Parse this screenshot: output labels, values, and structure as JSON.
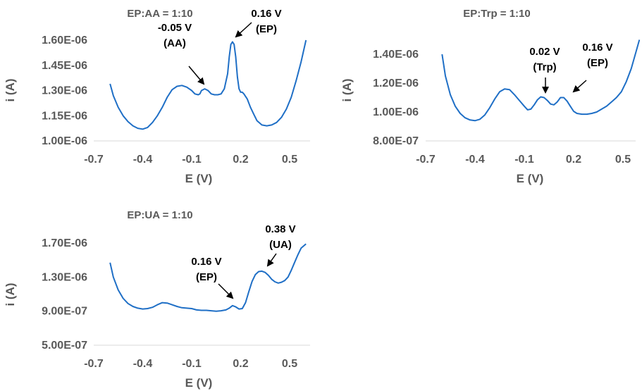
{
  "chart_data": [
    {
      "type": "line",
      "title": "EP:AA = 1:10",
      "xlabel": "E (V)",
      "ylabel": "i (A)",
      "xlim": [
        -0.6,
        0.6
      ],
      "ylim": [
        1e-06,
        1.6e-06
      ],
      "xticks": [
        -0.7,
        -0.4,
        -0.1,
        0.2,
        0.5
      ],
      "xtick_labels": [
        "-0.7",
        "-0.4",
        "-0.1",
        "0.2",
        "0.5"
      ],
      "yticks": [
        1e-06,
        1.15e-06,
        1.3e-06,
        1.45e-06,
        1.6e-06
      ],
      "ytick_labels": [
        "1.00E-06",
        "1.15E-06",
        "1.30E-06",
        "1.45E-06",
        "1.60E-06"
      ],
      "grid": false,
      "series": [
        {
          "color": "#1f6fc6",
          "x": [
            -0.6,
            -0.58,
            -0.55,
            -0.52,
            -0.49,
            -0.46,
            -0.43,
            -0.4,
            -0.37,
            -0.34,
            -0.31,
            -0.28,
            -0.25,
            -0.22,
            -0.19,
            -0.16,
            -0.13,
            -0.1,
            -0.08,
            -0.06,
            -0.05,
            -0.04,
            -0.02,
            0.0,
            0.02,
            0.04,
            0.06,
            0.08,
            0.1,
            0.12,
            0.13,
            0.14,
            0.15,
            0.16,
            0.17,
            0.18,
            0.19,
            0.2,
            0.21,
            0.22,
            0.24,
            0.26,
            0.28,
            0.3,
            0.33,
            0.36,
            0.39,
            0.42,
            0.45,
            0.48,
            0.51,
            0.54,
            0.57,
            0.6
          ],
          "y": [
            1.34e-06,
            1.27e-06,
            1.2e-06,
            1.15e-06,
            1.115e-06,
            1.09e-06,
            1.075e-06,
            1.07e-06,
            1.08e-06,
            1.11e-06,
            1.15e-06,
            1.2e-06,
            1.26e-06,
            1.305e-06,
            1.325e-06,
            1.33e-06,
            1.32e-06,
            1.3e-06,
            1.28e-06,
            1.275e-06,
            1.28e-06,
            1.3e-06,
            1.31e-06,
            1.3e-06,
            1.28e-06,
            1.275e-06,
            1.275e-06,
            1.28e-06,
            1.31e-06,
            1.4e-06,
            1.5e-06,
            1.575e-06,
            1.59e-06,
            1.575e-06,
            1.5e-06,
            1.38e-06,
            1.31e-06,
            1.29e-06,
            1.29e-06,
            1.28e-06,
            1.25e-06,
            1.2e-06,
            1.16e-06,
            1.12e-06,
            1.095e-06,
            1.09e-06,
            1.095e-06,
            1.11e-06,
            1.14e-06,
            1.19e-06,
            1.26e-06,
            1.36e-06,
            1.47e-06,
            1.6e-06
          ]
        }
      ],
      "annotations": [
        {
          "line1": "-0.05 V",
          "line2": "(AA)"
        },
        {
          "line1": "0.16 V",
          "line2": "(EP)"
        }
      ]
    },
    {
      "type": "line",
      "title": "EP:Trp = 1:10",
      "xlabel": "E (V)",
      "ylabel": "i (A)",
      "xlim": [
        -0.6,
        0.6
      ],
      "ylim": [
        8e-07,
        1.5e-06
      ],
      "xticks": [
        -0.7,
        -0.4,
        -0.1,
        0.2,
        0.5
      ],
      "xtick_labels": [
        "-0.7",
        "-0.4",
        "-0.1",
        "0.2",
        "0.5"
      ],
      "yticks": [
        8e-07,
        1e-06,
        1.2e-06,
        1.4e-06
      ],
      "ytick_labels": [
        "8.00E-07",
        "1.00E-06",
        "1.20E-06",
        "1.40E-06"
      ],
      "grid": false,
      "series": [
        {
          "color": "#1f6fc6",
          "x": [
            -0.6,
            -0.58,
            -0.55,
            -0.52,
            -0.49,
            -0.46,
            -0.43,
            -0.4,
            -0.37,
            -0.34,
            -0.31,
            -0.28,
            -0.25,
            -0.22,
            -0.19,
            -0.16,
            -0.13,
            -0.1,
            -0.08,
            -0.06,
            -0.04,
            -0.02,
            0.0,
            0.02,
            0.04,
            0.06,
            0.08,
            0.1,
            0.12,
            0.14,
            0.16,
            0.18,
            0.2,
            0.22,
            0.25,
            0.28,
            0.31,
            0.34,
            0.37,
            0.4,
            0.43,
            0.46,
            0.49,
            0.52,
            0.55,
            0.58,
            0.6
          ],
          "y": [
            1.4e-06,
            1.25e-06,
            1.12e-06,
            1.04e-06,
            9.9e-07,
            9.6e-07,
            9.45e-07,
            9.4e-07,
            9.5e-07,
            9.8e-07,
            1.03e-06,
            1.09e-06,
            1.14e-06,
            1.16e-06,
            1.155e-06,
            1.12e-06,
            1.08e-06,
            1.04e-06,
            1.015e-06,
            1.02e-06,
            1.05e-06,
            1.085e-06,
            1.105e-06,
            1.1e-06,
            1.08e-06,
            1.055e-06,
            1.05e-06,
            1.07e-06,
            1.1e-06,
            1.1e-06,
            1.075e-06,
            1.04e-06,
            1.005e-06,
            9.9e-07,
            9.85e-07,
            9.85e-07,
            9.9e-07,
            1e-06,
            1.02e-06,
            1.04e-06,
            1.07e-06,
            1.1e-06,
            1.14e-06,
            1.21e-06,
            1.3e-06,
            1.42e-06,
            1.5e-06
          ]
        }
      ],
      "annotations": [
        {
          "line1": "0.02 V",
          "line2": "(Trp)"
        },
        {
          "line1": "0.16 V",
          "line2": "(EP)"
        }
      ]
    },
    {
      "type": "line",
      "title": "EP:UA = 1:10",
      "xlabel": "E (V)",
      "ylabel": "i (A)",
      "xlim": [
        -0.6,
        0.6
      ],
      "ylim": [
        5e-07,
        1.7e-06
      ],
      "xticks": [
        -0.7,
        -0.4,
        -0.1,
        0.2,
        0.5
      ],
      "xtick_labels": [
        "-0.7",
        "-0.4",
        "-0.1",
        "0.2",
        "0.5"
      ],
      "yticks": [
        5e-07,
        9e-07,
        1.3e-06,
        1.7e-06
      ],
      "ytick_labels": [
        "5.00E-07",
        "9.00E-07",
        "1.30E-06",
        "1.70E-06"
      ],
      "grid": false,
      "series": [
        {
          "color": "#1f6fc6",
          "x": [
            -0.6,
            -0.58,
            -0.55,
            -0.52,
            -0.49,
            -0.46,
            -0.43,
            -0.4,
            -0.37,
            -0.34,
            -0.31,
            -0.28,
            -0.25,
            -0.22,
            -0.19,
            -0.16,
            -0.13,
            -0.1,
            -0.07,
            -0.04,
            -0.01,
            0.02,
            0.05,
            0.08,
            0.11,
            0.13,
            0.15,
            0.17,
            0.19,
            0.21,
            0.23,
            0.25,
            0.27,
            0.29,
            0.31,
            0.33,
            0.35,
            0.37,
            0.39,
            0.41,
            0.43,
            0.45,
            0.47,
            0.49,
            0.51,
            0.53,
            0.55,
            0.57,
            0.6
          ],
          "y": [
            1.47e-06,
            1.3e-06,
            1.15e-06,
            1.05e-06,
            9.9e-07,
            9.55e-07,
            9.35e-07,
            9.25e-07,
            9.3e-07,
            9.45e-07,
            9.75e-07,
            1e-06,
            9.95e-07,
            9.75e-07,
            9.55e-07,
            9.4e-07,
            9.35e-07,
            9.3e-07,
            9.15e-07,
            9.1e-07,
            9.1e-07,
            9.05e-07,
            9e-07,
            9.05e-07,
            9.15e-07,
            9.35e-07,
            9.65e-07,
            9.5e-07,
            9.25e-07,
            9.3e-07,
            1e-06,
            1.13e-06,
            1.25e-06,
            1.33e-06,
            1.365e-06,
            1.37e-06,
            1.355e-06,
            1.32e-06,
            1.275e-06,
            1.245e-06,
            1.23e-06,
            1.24e-06,
            1.26e-06,
            1.3e-06,
            1.38e-06,
            1.47e-06,
            1.56e-06,
            1.64e-06,
            1.69e-06
          ]
        }
      ],
      "annotations": [
        {
          "line1": "0.16 V",
          "line2": "(EP)"
        },
        {
          "line1": "0.38 V",
          "line2": "(UA)"
        }
      ]
    }
  ]
}
